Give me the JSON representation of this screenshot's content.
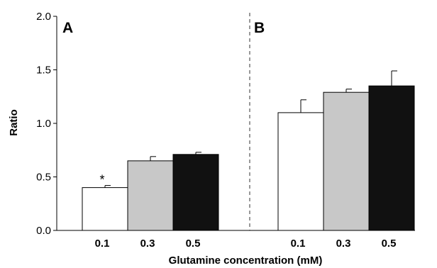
{
  "chart_data": {
    "type": "bar",
    "ylabel": "Ratio",
    "xlabel": "Glutamine concentration (mM)",
    "ylim": [
      0,
      2.0
    ],
    "yticks": [
      "0.0",
      "0.5",
      "1.0",
      "1.5",
      "2.0"
    ],
    "grid": false,
    "panels": [
      {
        "label": "A",
        "categories": [
          "0.1",
          "0.3",
          "0.5"
        ],
        "values": [
          0.4,
          0.65,
          0.71
        ],
        "errors": [
          0.02,
          0.04,
          0.02
        ],
        "colors": [
          "#ffffff",
          "#c8c8c8",
          "#111111"
        ],
        "annotations": [
          "*",
          "",
          ""
        ]
      },
      {
        "label": "B",
        "categories": [
          "0.1",
          "0.3",
          "0.5"
        ],
        "values": [
          1.1,
          1.29,
          1.35
        ],
        "errors": [
          0.12,
          0.03,
          0.14
        ],
        "colors": [
          "#ffffff",
          "#c8c8c8",
          "#111111"
        ],
        "annotations": [
          "",
          "",
          ""
        ]
      }
    ]
  }
}
